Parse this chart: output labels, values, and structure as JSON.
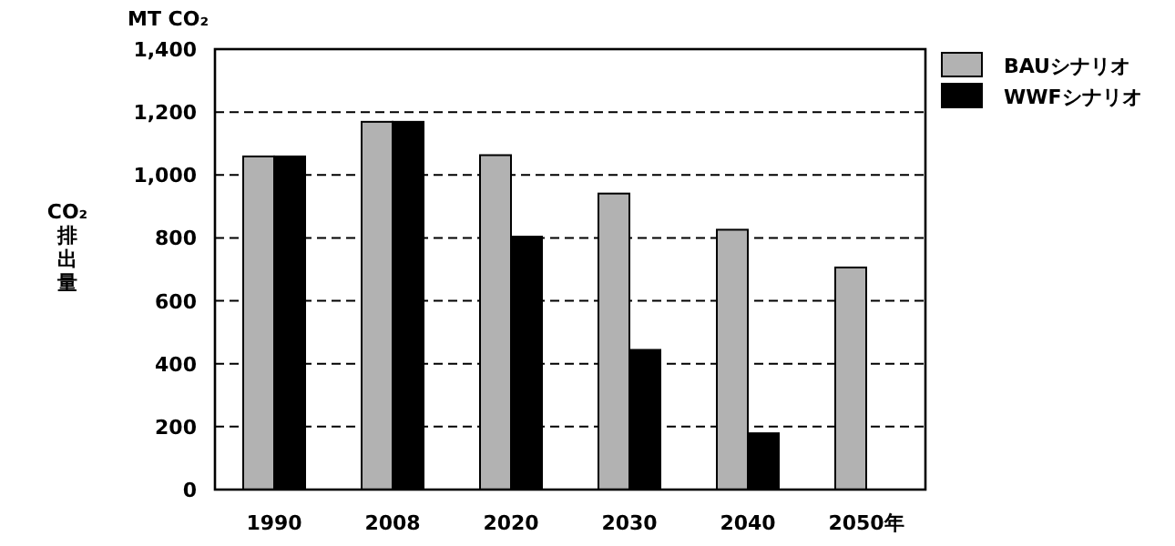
{
  "chart_data": {
    "type": "bar",
    "ylabel": "CO₂排出量",
    "annotations": [
      "MT CO₂"
    ],
    "categories": [
      "1990",
      "2008",
      "2020",
      "2030",
      "2040",
      "2050年"
    ],
    "series": [
      {
        "name": "BAUシナリオ",
        "color": "#b2b2b2",
        "values": [
          1059,
          1169,
          1063,
          941,
          826,
          706
        ]
      },
      {
        "name": "WWFシナリオ",
        "color": "#000000",
        "values": [
          1059,
          1169,
          804,
          444,
          179,
          null
        ]
      }
    ],
    "ylim": [
      0,
      1400
    ],
    "yticks": [
      0,
      200,
      400,
      600,
      800,
      {
        "value": 1000,
        "label": "1,000"
      },
      {
        "value": 1200,
        "label": "1,200"
      },
      {
        "value": 1400,
        "label": "1,400"
      }
    ],
    "grid": "y",
    "legend": "top right"
  }
}
